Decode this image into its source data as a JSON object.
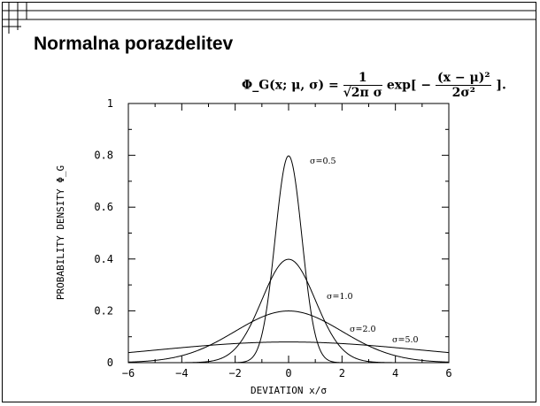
{
  "slide": {
    "title": "Normalna porazdelitev",
    "formula": {
      "lhs": "Φ_G(x; μ, σ) =",
      "numerator": "1",
      "denominator": "√2π σ",
      "exp_text": "exp[ −",
      "exp_numerator": "(x − μ)²",
      "exp_denominator": "2σ²",
      "tail": "]."
    }
  },
  "chart_data": {
    "type": "line",
    "title": "",
    "xlabel": "DEVIATION x/σ",
    "ylabel": "PROBABILITY DENSITY Φ_G",
    "xlim": [
      -6,
      6
    ],
    "ylim": [
      0,
      1
    ],
    "xticks": [
      "−6",
      "−4",
      "−2",
      "0",
      "2",
      "4",
      "6"
    ],
    "yticks": [
      "0",
      "0.2",
      "0.4",
      "0.6",
      "0.8",
      "1"
    ],
    "grid": false,
    "series": [
      {
        "name": "σ=0.5",
        "sigma": 0.5,
        "mu": 0,
        "x_range": [
          -6,
          6
        ]
      },
      {
        "name": "σ=1.0",
        "sigma": 1.0,
        "mu": 0,
        "x_range": [
          -6,
          6
        ]
      },
      {
        "name": "σ=2.0",
        "sigma": 2.0,
        "mu": 0,
        "x_range": [
          -6,
          6
        ]
      },
      {
        "name": "σ=5.0",
        "sigma": 5.0,
        "mu": 0,
        "x_range": [
          -6,
          6
        ]
      }
    ],
    "line_color": "#000000"
  }
}
